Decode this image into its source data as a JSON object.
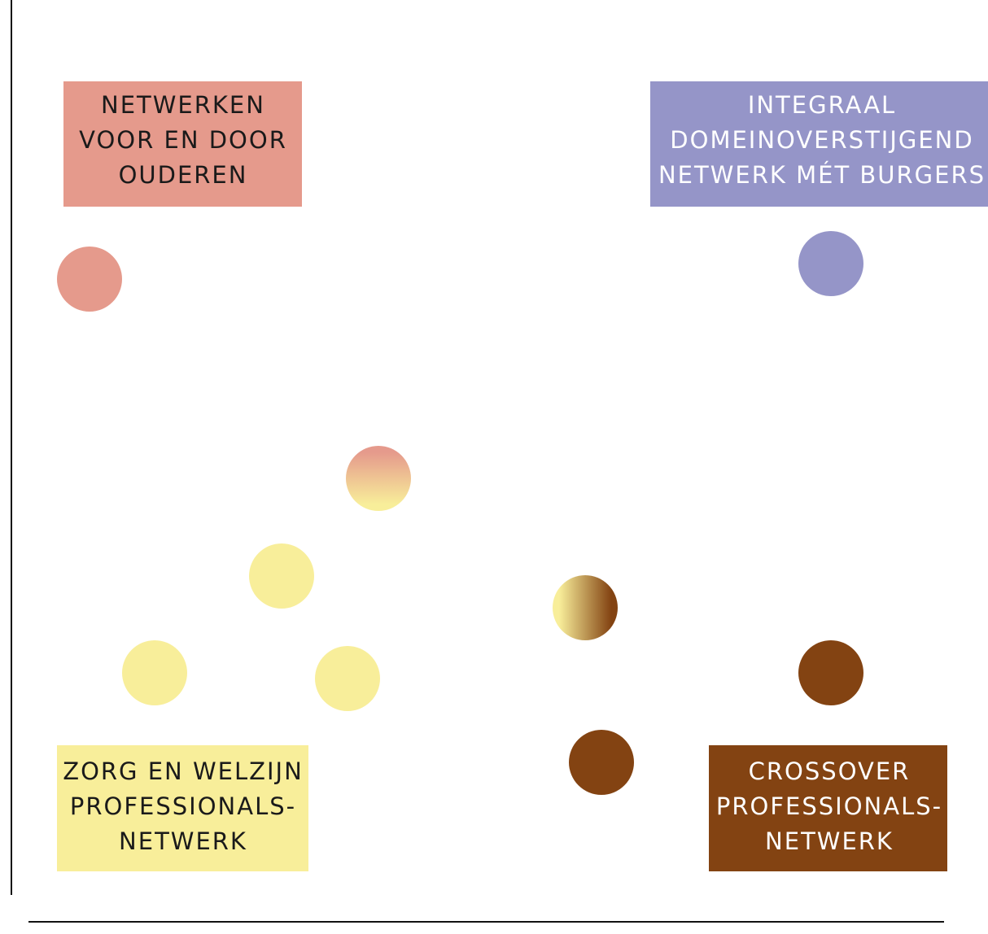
{
  "nodes": [
    {
      "label": [
        "NETWERKEN",
        "VOOR EN DOOR",
        "OUDEREN"
      ]
    },
    {
      "label": [
        "INTEGRAAL",
        "DOMEINOVERSTIJGEND",
        "NETWERK MÉT BURGERS"
      ]
    },
    {
      "label": [
        "ZORG EN WELZIJN",
        "PROFESSIONALS-",
        "NETWERK"
      ]
    },
    {
      "label": [
        "CROSSOVER",
        "PROFESSIONALS-",
        "NETWERK"
      ]
    }
  ]
}
